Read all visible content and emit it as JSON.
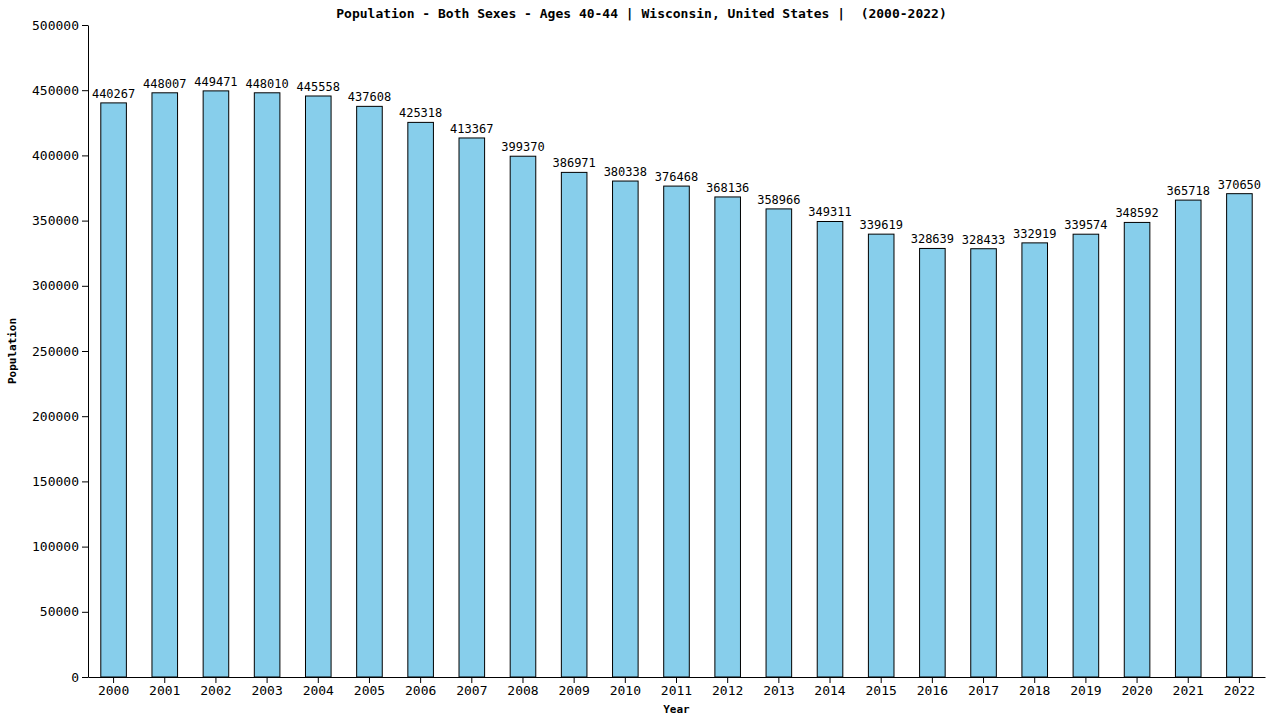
{
  "chart_data": {
    "type": "bar",
    "title": "Population - Both Sexes - Ages 40-44 | Wisconsin, United States |  (2000-2022)",
    "x_label": "Year",
    "y_label": "Population",
    "categories": [
      "2000",
      "2001",
      "2002",
      "2003",
      "2004",
      "2005",
      "2006",
      "2007",
      "2008",
      "2009",
      "2010",
      "2011",
      "2012",
      "2013",
      "2014",
      "2015",
      "2016",
      "2017",
      "2018",
      "2019",
      "2020",
      "2021",
      "2022"
    ],
    "values": [
      440267,
      448007,
      449471,
      448010,
      445558,
      437608,
      425318,
      413367,
      399370,
      386971,
      380338,
      376468,
      368136,
      358966,
      349311,
      339619,
      328639,
      328433,
      332919,
      339574,
      348592,
      365718,
      370650
    ],
    "color": "#87ceeb",
    "ylim": [
      0,
      500000
    ],
    "yticks": [
      0,
      50000,
      100000,
      150000,
      200000,
      250000,
      300000,
      350000,
      400000,
      450000,
      500000
    ],
    "grid": false,
    "data_labels": true
  }
}
